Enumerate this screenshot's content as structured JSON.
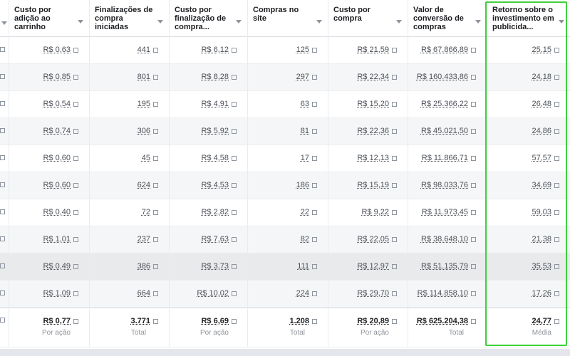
{
  "table": {
    "columns": [
      "Custo por adição ao carrinho",
      "Finalizações de compra iniciadas",
      "Custo por finalização de compra...",
      "Compras no site",
      "Custo por compra",
      "Valor de conversão de compras",
      "Retorno sobre o investimento em publicida..."
    ],
    "rows": [
      [
        "R$ 0,63",
        "441",
        "R$ 6,12",
        "125",
        "R$ 21,59",
        "R$ 67.866,89",
        "25,15"
      ],
      [
        "R$ 0,85",
        "801",
        "R$ 8,28",
        "297",
        "R$ 22,34",
        "R$ 160.433,86",
        "24,18"
      ],
      [
        "R$ 0,54",
        "195",
        "R$ 4,91",
        "63",
        "R$ 15,20",
        "R$ 25.366,22",
        "26,48"
      ],
      [
        "R$ 0,74",
        "306",
        "R$ 5,92",
        "81",
        "R$ 22,36",
        "R$ 45.021,50",
        "24,86"
      ],
      [
        "R$ 0,60",
        "45",
        "R$ 4,58",
        "17",
        "R$ 12,13",
        "R$ 11.866,71",
        "57,57"
      ],
      [
        "R$ 0,60",
        "624",
        "R$ 4,53",
        "186",
        "R$ 15,19",
        "R$ 98.033,76",
        "34,69"
      ],
      [
        "R$ 0,40",
        "72",
        "R$ 2,82",
        "22",
        "R$ 9,22",
        "R$ 11.973,45",
        "59,03"
      ],
      [
        "R$ 1,01",
        "237",
        "R$ 7,63",
        "82",
        "R$ 22,05",
        "R$ 38.648,10",
        "21,38"
      ],
      [
        "R$ 0,49",
        "386",
        "R$ 3,73",
        "111",
        "R$ 12,97",
        "R$ 51.135,79",
        "35,53"
      ],
      [
        "R$ 1,09",
        "664",
        "R$ 10,02",
        "224",
        "R$ 29,70",
        "R$ 114.858,10",
        "17,26"
      ]
    ],
    "totals": [
      {
        "value": "R$ 0,77",
        "note": "Por ação"
      },
      {
        "value": "3.771",
        "note": "Total"
      },
      {
        "value": "R$ 6,69",
        "note": "Por ação"
      },
      {
        "value": "1.208",
        "note": "Total"
      },
      {
        "value": "R$ 20,89",
        "note": "Por ação"
      },
      {
        "value": "R$ 625.204,38",
        "note": "Total"
      },
      {
        "value": "24,77",
        "note": "Média"
      }
    ]
  }
}
